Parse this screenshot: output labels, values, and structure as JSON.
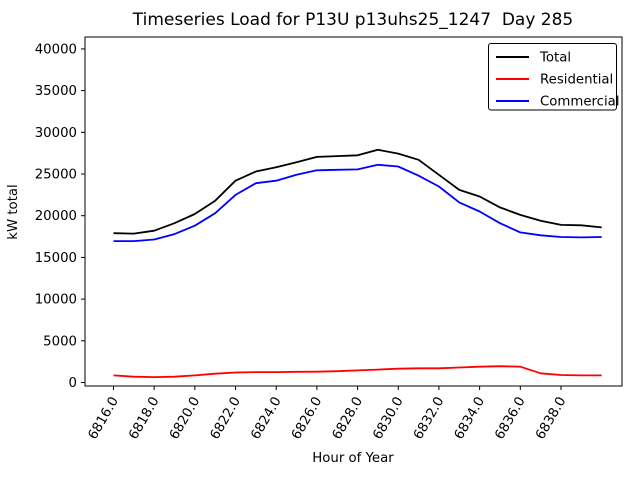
{
  "chart_data": {
    "type": "line",
    "title": "Timeseries Load for P13U p13uhs25_1247  Day 285",
    "xlabel": "Hour of Year",
    "ylabel": "kW total",
    "x": [
      6816,
      6817,
      6818,
      6819,
      6820,
      6821,
      6822,
      6823,
      6824,
      6825,
      6826,
      6827,
      6828,
      6829,
      6830,
      6831,
      6832,
      6833,
      6834,
      6835,
      6836,
      6837,
      6838,
      6839,
      6840
    ],
    "series": [
      {
        "name": "Total",
        "color": "#000000",
        "values": [
          17900,
          17850,
          18200,
          19100,
          20200,
          21800,
          24200,
          25300,
          25800,
          26400,
          27050,
          27150,
          27250,
          27900,
          27450,
          26700,
          24900,
          23100,
          22300,
          21000,
          20100,
          19400,
          18900,
          18850,
          18600
        ]
      },
      {
        "name": "Residential",
        "color": "#ff0000",
        "values": [
          850,
          700,
          650,
          700,
          850,
          1050,
          1200,
          1250,
          1250,
          1280,
          1300,
          1350,
          1450,
          1550,
          1650,
          1700,
          1700,
          1800,
          1900,
          1950,
          1900,
          1100,
          900,
          850,
          850
        ]
      },
      {
        "name": "Commercial",
        "color": "#0000ff",
        "values": [
          16950,
          16950,
          17150,
          17800,
          18800,
          20300,
          22500,
          23900,
          24200,
          24900,
          25450,
          25500,
          25550,
          26100,
          25900,
          24800,
          23500,
          21600,
          20500,
          19100,
          18000,
          17650,
          17450,
          17400,
          17450
        ]
      }
    ],
    "xticks": [
      6816,
      6818,
      6820,
      6822,
      6824,
      6826,
      6828,
      6830,
      6832,
      6834,
      6836,
      6838
    ],
    "xtick_labels": [
      "6816.0",
      "6818.0",
      "6820.0",
      "6822.0",
      "6824.0",
      "6826.0",
      "6828.0",
      "6830.0",
      "6832.0",
      "6834.0",
      "6836.0",
      "6838.0"
    ],
    "xtick_rotation": 60,
    "yticks": [
      0,
      5000,
      10000,
      15000,
      20000,
      25000,
      30000,
      35000,
      40000
    ],
    "xlim": [
      6814.6,
      6841.0
    ],
    "ylim": [
      -420,
      41430
    ],
    "grid": false,
    "legend": {
      "position": "upper right"
    },
    "background": "#ffffff"
  }
}
